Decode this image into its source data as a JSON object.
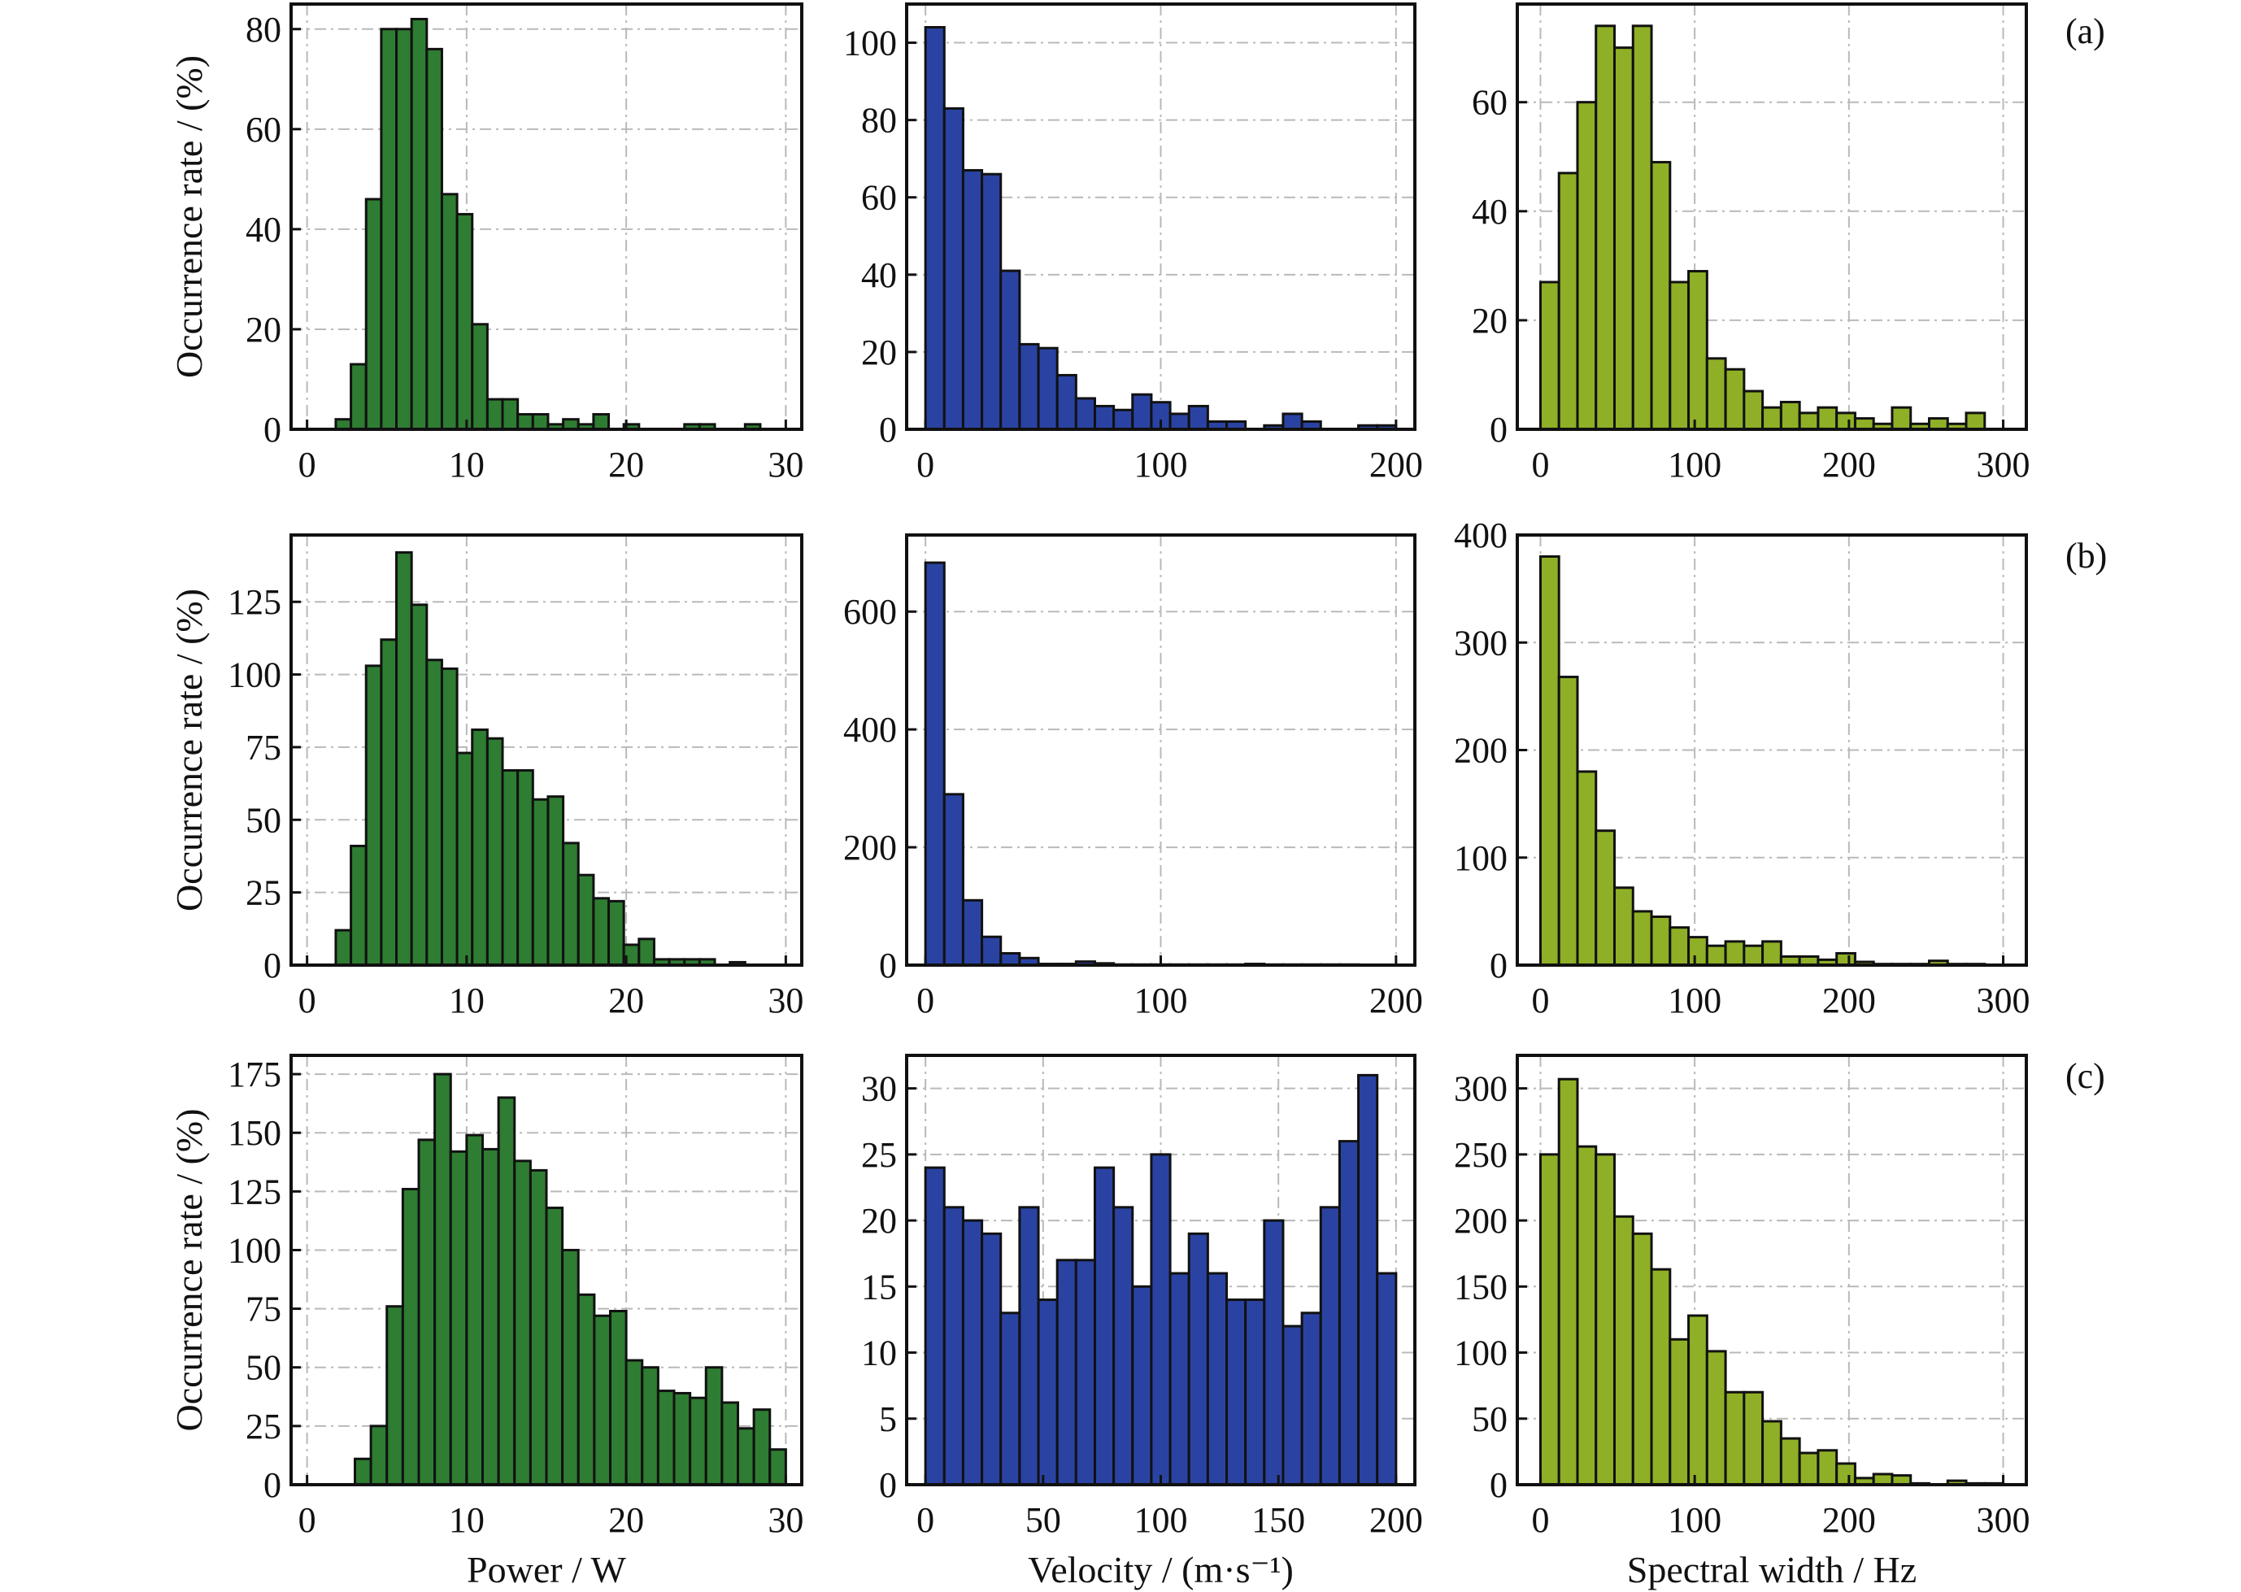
{
  "chart_data": {
    "type": "bar",
    "layout": "3x3 grid of histograms",
    "rows": [
      "(a)",
      "(b)",
      "(c)"
    ],
    "ylabel": "Occurrence rate / (%)",
    "colors": {
      "power": "#2e7d32",
      "velocity": "#2a43a3",
      "spectral": "#8fb026",
      "edge": "#111111",
      "grid": "#b9b9b9"
    },
    "panels": [
      {
        "id": "a-power",
        "row": "(a)",
        "xlabel": "Power / W",
        "xlim": [
          -1,
          31
        ],
        "ylim": [
          0,
          85
        ],
        "xticks": [
          0,
          10,
          20,
          30
        ],
        "yticks": [
          0,
          20,
          40,
          60,
          80
        ],
        "bin_start": 1.8,
        "bin_width": 0.95,
        "values": [
          2,
          13,
          46,
          80,
          80,
          82,
          76,
          47,
          43,
          21,
          6,
          6,
          3,
          3,
          1,
          2,
          1,
          3,
          0,
          1,
          0,
          0,
          0,
          1,
          1,
          0,
          0,
          1
        ]
      },
      {
        "id": "a-velocity",
        "row": "(a)",
        "xlabel": "Velocity / (m·s⁻¹)",
        "xlim": [
          -8,
          208
        ],
        "ylim": [
          0,
          110
        ],
        "xticks": [
          0,
          100,
          200
        ],
        "yticks": [
          0,
          20,
          40,
          60,
          80,
          100
        ],
        "bin_start": 0,
        "bin_width": 8,
        "values": [
          104,
          83,
          67,
          66,
          41,
          22,
          21,
          14,
          8,
          6,
          5,
          9,
          7,
          4,
          6,
          2,
          2,
          0,
          1,
          4,
          2,
          0,
          0,
          1,
          1
        ]
      },
      {
        "id": "a-spectral",
        "row": "(a)",
        "xlabel": "Spectral width / Hz",
        "xlim": [
          -15,
          315
        ],
        "ylim": [
          0,
          78
        ],
        "xticks": [
          0,
          100,
          200,
          300
        ],
        "yticks": [
          0,
          20,
          40,
          60
        ],
        "bin_start": 0,
        "bin_width": 12,
        "values": [
          27,
          47,
          60,
          74,
          70,
          74,
          49,
          27,
          29,
          13,
          11,
          7,
          4,
          5,
          3,
          4,
          3,
          2,
          1,
          4,
          1,
          2,
          1,
          3,
          0
        ]
      },
      {
        "id": "b-power",
        "row": "(b)",
        "xlabel": "Power / W",
        "xlim": [
          -1,
          31
        ],
        "ylim": [
          0,
          148
        ],
        "xticks": [
          0,
          10,
          20,
          30
        ],
        "yticks": [
          0,
          25,
          50,
          75,
          100,
          125
        ],
        "bin_start": 1.8,
        "bin_width": 0.95,
        "values": [
          12,
          41,
          103,
          112,
          142,
          124,
          105,
          102,
          73,
          81,
          78,
          67,
          67,
          57,
          58,
          42,
          31,
          23,
          22,
          7,
          9,
          2,
          2,
          2,
          2,
          0,
          1
        ]
      },
      {
        "id": "b-velocity",
        "row": "(b)",
        "xlabel": "Velocity / (m·s⁻¹)",
        "xlim": [
          -8,
          208
        ],
        "ylim": [
          0,
          730
        ],
        "xticks": [
          0,
          100,
          200
        ],
        "yticks": [
          0,
          200,
          400,
          600
        ],
        "bin_start": 0,
        "bin_width": 8,
        "values": [
          683,
          290,
          110,
          48,
          20,
          12,
          2,
          2,
          6,
          3,
          1,
          1,
          1,
          1,
          1,
          1,
          1,
          2,
          1,
          1,
          1,
          1,
          1,
          0,
          0
        ]
      },
      {
        "id": "b-spectral",
        "row": "(b)",
        "xlabel": "Spectral width / Hz",
        "xlim": [
          -15,
          315
        ],
        "ylim": [
          0,
          400
        ],
        "xticks": [
          0,
          100,
          200,
          300
        ],
        "yticks": [
          0,
          100,
          200,
          300,
          400
        ],
        "bin_start": 0,
        "bin_width": 12,
        "values": [
          380,
          268,
          180,
          125,
          72,
          50,
          45,
          35,
          26,
          18,
          22,
          18,
          22,
          8,
          8,
          5,
          11,
          3,
          1,
          1,
          1,
          4,
          1,
          1,
          0
        ]
      },
      {
        "id": "c-power",
        "row": "(c)",
        "xlabel": "Power / W",
        "xlim": [
          -1,
          31
        ],
        "ylim": [
          0,
          183
        ],
        "xticks": [
          0,
          10,
          20,
          30
        ],
        "yticks": [
          0,
          25,
          50,
          75,
          100,
          125,
          150,
          175
        ],
        "bin_start": 3.0,
        "bin_width": 1.0,
        "values": [
          11,
          25,
          76,
          126,
          147,
          175,
          142,
          149,
          143,
          165,
          138,
          134,
          118,
          100,
          81,
          72,
          74,
          53,
          50,
          40,
          39,
          37,
          50,
          35,
          24,
          32,
          15
        ]
      },
      {
        "id": "c-velocity",
        "row": "(c)",
        "xlabel": "Velocity / (m·s⁻¹)",
        "xlim": [
          -8,
          208
        ],
        "ylim": [
          0,
          32.5
        ],
        "xticks": [
          0,
          50,
          100,
          150,
          200
        ],
        "yticks": [
          0,
          5,
          10,
          15,
          20,
          25,
          30
        ],
        "bin_start": 0,
        "bin_width": 8,
        "values": [
          24,
          21,
          20,
          19,
          13,
          21,
          14,
          17,
          17,
          24,
          21,
          15,
          25,
          16,
          19,
          16,
          14,
          14,
          20,
          12,
          13,
          21,
          26,
          31,
          16
        ]
      },
      {
        "id": "c-spectral",
        "row": "(c)",
        "xlabel": "Spectral width / Hz",
        "xlim": [
          -15,
          315
        ],
        "ylim": [
          0,
          325
        ],
        "xticks": [
          0,
          100,
          200,
          300
        ],
        "yticks": [
          0,
          50,
          100,
          150,
          200,
          250,
          300
        ],
        "bin_start": 0,
        "bin_width": 12,
        "values": [
          250,
          307,
          256,
          250,
          203,
          190,
          163,
          110,
          128,
          101,
          70,
          70,
          48,
          35,
          24,
          26,
          16,
          5,
          8,
          7,
          1,
          0,
          3,
          1,
          1
        ]
      }
    ],
    "xlabels_bottom": [
      "Power / W",
      "Velocity / (m·s⁻¹)",
      "Spectral width / Hz"
    ],
    "grid": true,
    "legend": "none"
  }
}
